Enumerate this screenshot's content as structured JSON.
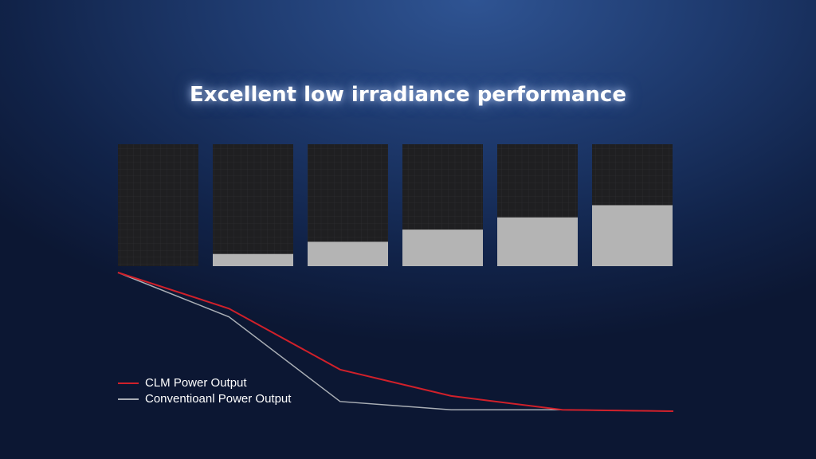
{
  "chart_data": {
    "type": "line",
    "title": "Excellent low irradiance performance",
    "panels": {
      "shaded": [
        0,
        10,
        20,
        30,
        40,
        50
      ],
      "lim": [
        0,
        100
      ],
      "color": "#b4b4b4"
    },
    "ylim": [
      0,
      100
    ],
    "series": [
      {
        "name": "CLM Power Output",
        "color": "#d0202a",
        "values": [
          100,
          74,
          30,
          11,
          1,
          0
        ]
      },
      {
        "name": "Conventioanl Power Output",
        "color": "#a9aeb5",
        "values": [
          100,
          68,
          7,
          1,
          1,
          0
        ]
      }
    ]
  }
}
